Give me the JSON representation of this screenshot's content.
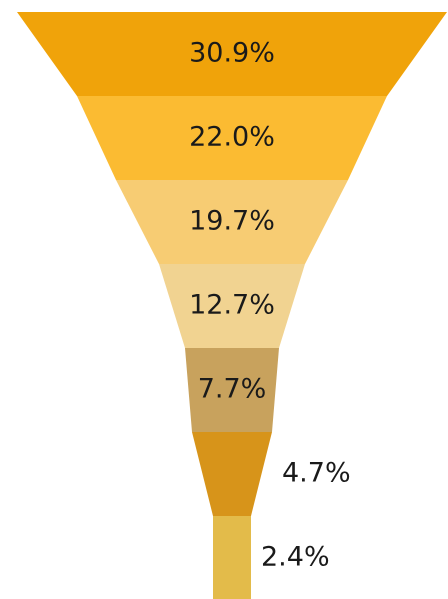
{
  "chart_data": {
    "type": "funnel",
    "title": "",
    "stages": [
      {
        "value": 30.9,
        "label": "30.9%",
        "color": "#F0A30A",
        "label_position": "inside"
      },
      {
        "value": 22.0,
        "label": "22.0%",
        "color": "#FBBB32",
        "label_position": "inside"
      },
      {
        "value": 19.7,
        "label": "19.7%",
        "color": "#F7CC73",
        "label_position": "inside"
      },
      {
        "value": 12.7,
        "label": "12.7%",
        "color": "#F1D391",
        "label_position": "inside"
      },
      {
        "value": 7.7,
        "label": "7.7%",
        "color": "#C8A25D",
        "label_position": "inside"
      },
      {
        "value": 4.7,
        "label": "4.7%",
        "color": "#D7941A",
        "label_position": "outside"
      },
      {
        "value": 2.4,
        "label": "2.4%",
        "color": "#E3BB4A",
        "label_position": "outside"
      }
    ]
  }
}
